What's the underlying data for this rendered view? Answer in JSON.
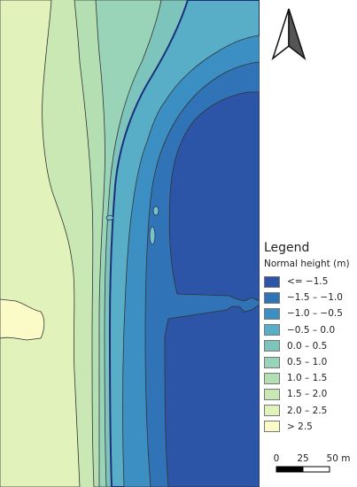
{
  "legend": {
    "title": "Legend",
    "subtitle": "Normal height (m)",
    "classes": [
      {
        "label": "<= −1.5",
        "color": "#2c55a8"
      },
      {
        "label": "−1.5 – −1.0",
        "color": "#3173b7"
      },
      {
        "label": "−1.0 – −0.5",
        "color": "#3b8fc3"
      },
      {
        "label": "−0.5 – 0.0",
        "color": "#57aec6"
      },
      {
        "label": "0.0 – 0.5",
        "color": "#7dc5bc"
      },
      {
        "label": "0.5 – 1.0",
        "color": "#99d4b9"
      },
      {
        "label": "1.0 – 1.5",
        "color": "#b3dfb2"
      },
      {
        "label": "1.5 – 2.0",
        "color": "#c9e8b3"
      },
      {
        "label": "2.0 – 2.5",
        "color": "#e1f2bb"
      },
      {
        "label": "> 2.5",
        "color": "#fbfbc7"
      }
    ]
  },
  "scalebar": {
    "ticks": [
      "0",
      "25",
      "50 m"
    ]
  },
  "north_arrow": {
    "icon": "north-arrow-icon"
  }
}
